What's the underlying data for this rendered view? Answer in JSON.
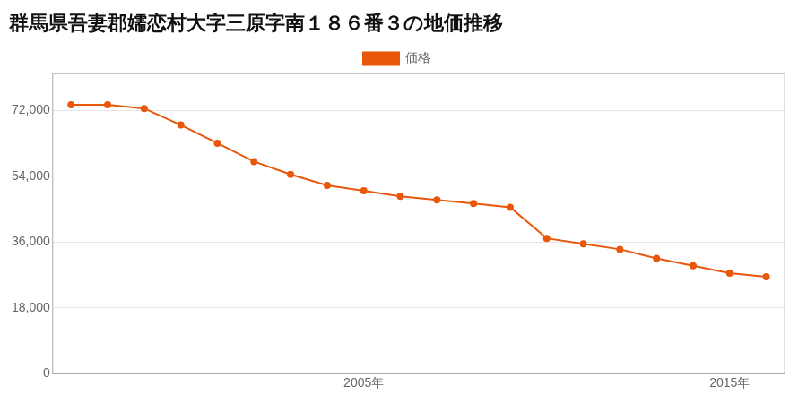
{
  "chart_data": {
    "type": "line",
    "title": "群馬県吾妻郡嬬恋村大字三原字南１８６番３の地価推移",
    "x": [
      1997,
      1998,
      1999,
      2000,
      2001,
      2002,
      2003,
      2004,
      2005,
      2006,
      2007,
      2008,
      2009,
      2010,
      2011,
      2012,
      2013,
      2014,
      2015,
      2016
    ],
    "series": [
      {
        "name": "価格",
        "color": "#e8570a",
        "marker": "circle",
        "values": [
          73500,
          73500,
          72500,
          68000,
          63000,
          58000,
          54500,
          51500,
          50000,
          48500,
          47500,
          46500,
          45500,
          37000,
          35500,
          34000,
          31500,
          29500,
          27500,
          26500
        ]
      }
    ],
    "xlim": [
      1996.5,
      2016.5
    ],
    "xticks": [
      {
        "value": 2005,
        "label": "2005年"
      },
      {
        "value": 2015,
        "label": "2015年"
      }
    ],
    "ylim": [
      0,
      82000
    ],
    "yticks": [
      0,
      {
        "value": 18000,
        "label": "18,000"
      },
      {
        "value": 36000,
        "label": "36,000"
      },
      {
        "value": 54000,
        "label": "54,000"
      },
      {
        "value": 72000,
        "label": "72,000"
      }
    ],
    "grid": "y",
    "legend": "top"
  }
}
